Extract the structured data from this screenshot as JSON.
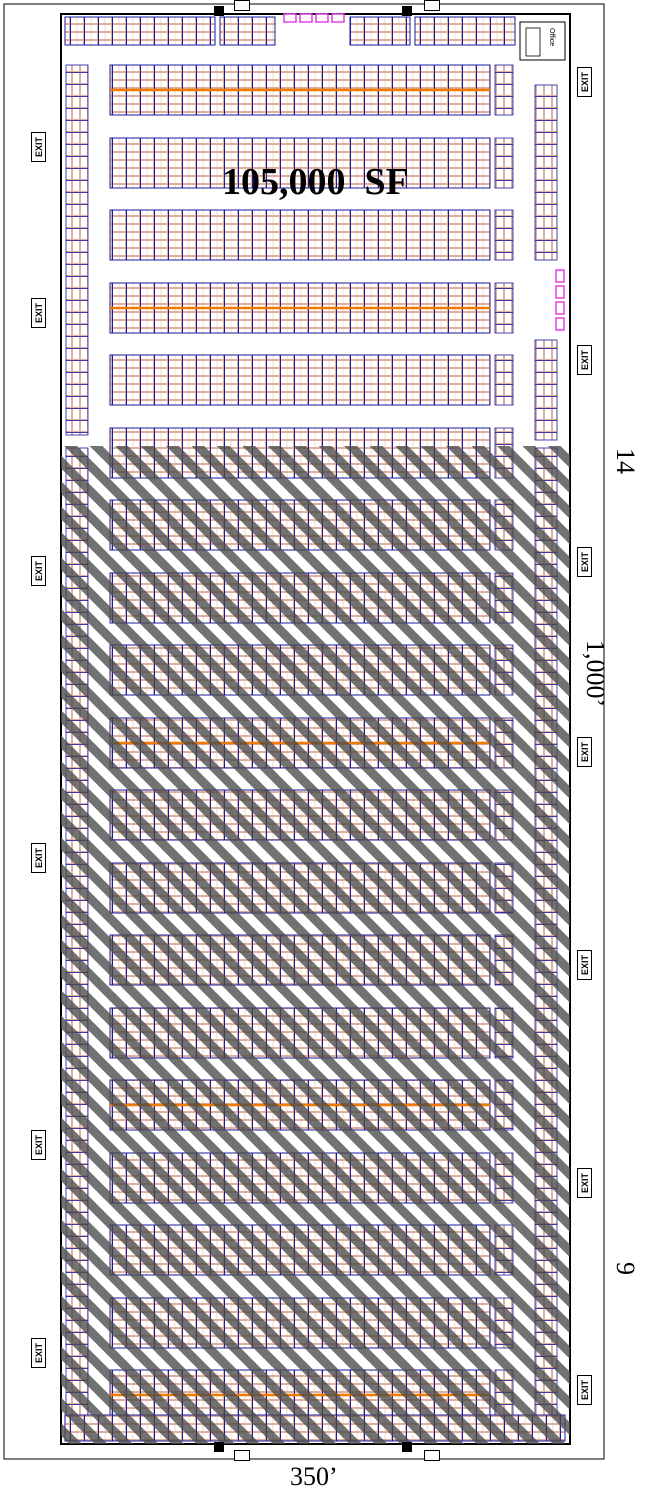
{
  "area_label": "105,000  SF",
  "dimensions": {
    "width": "350’",
    "length": "1,000’"
  },
  "side_marks": [
    "14",
    "9"
  ],
  "exit_label": "EXIT",
  "office_label": "Office",
  "colors": {
    "rack_uprights": "#1a1aa0",
    "rack_beams": "#f0a040",
    "rack_cells": "#c87860",
    "center_beam": "#f07a00",
    "dock_doors": "#e040e0",
    "hatch": "#333333",
    "wall": "#000000"
  },
  "exits": {
    "left": [
      1,
      2,
      3,
      4,
      5,
      6
    ],
    "right": [
      1,
      2,
      3,
      4,
      5,
      6,
      7
    ]
  }
}
